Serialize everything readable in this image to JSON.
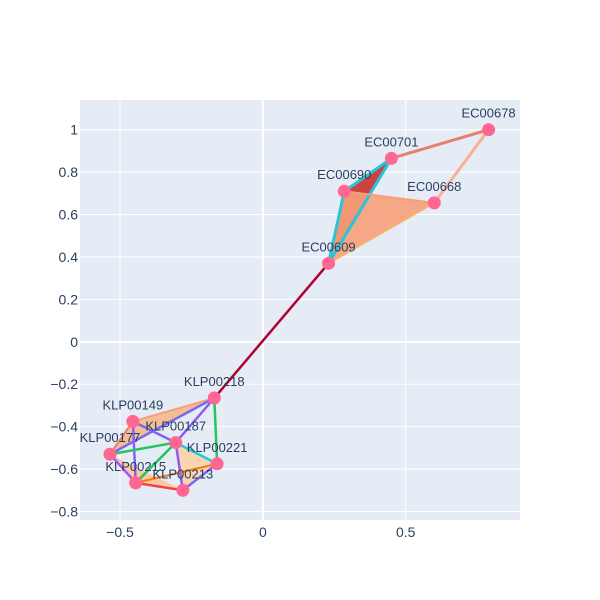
{
  "chart_data": {
    "type": "scatter",
    "title": "",
    "xlabel": "",
    "ylabel": "",
    "xlim": [
      -0.64,
      0.9
    ],
    "ylim": [
      -0.84,
      1.14
    ],
    "x_ticks": [
      -0.5,
      0,
      0.5
    ],
    "x_tick_labels": [
      "−0.5",
      "0",
      "0.5"
    ],
    "y_ticks": [
      -0.8,
      -0.6,
      -0.4,
      -0.2,
      0,
      0.2,
      0.4,
      0.6,
      0.8,
      1
    ],
    "y_tick_labels": [
      "−0.8",
      "−0.6",
      "−0.4",
      "−0.2",
      "0",
      "0.2",
      "0.4",
      "0.6",
      "0.8",
      "1"
    ],
    "grid": true,
    "legend": "none",
    "colors": {
      "plot_bg": "#e5ecf6",
      "node": "#ff6692",
      "bridge": "#b2002f"
    },
    "nodes": [
      {
        "id": "EC00678",
        "x": 0.79,
        "y": 1.0
      },
      {
        "id": "EC00701",
        "x": 0.45,
        "y": 0.865
      },
      {
        "id": "EC00690",
        "x": 0.285,
        "y": 0.71
      },
      {
        "id": "EC00668",
        "x": 0.6,
        "y": 0.655
      },
      {
        "id": "EC00609",
        "x": 0.23,
        "y": 0.37
      },
      {
        "id": "KLP00218",
        "x": -0.17,
        "y": -0.265
      },
      {
        "id": "KLP00149",
        "x": -0.455,
        "y": -0.375
      },
      {
        "id": "KLP00187",
        "x": -0.305,
        "y": -0.475
      },
      {
        "id": "KLP00177",
        "x": -0.535,
        "y": -0.53
      },
      {
        "id": "KLP00221",
        "x": -0.16,
        "y": -0.575
      },
      {
        "id": "KLP00215",
        "x": -0.445,
        "y": -0.665
      },
      {
        "id": "KLP00213",
        "x": -0.28,
        "y": -0.7
      }
    ],
    "triangles": [
      {
        "nodes": [
          "EC00701",
          "EC00690",
          "EC00609"
        ],
        "color": "#c9302c"
      },
      {
        "nodes": [
          "EC00690",
          "EC00668",
          "EC00609"
        ],
        "color": "#f6a07a"
      },
      {
        "nodes": [
          "KLP00218",
          "KLP00149",
          "KLP00177"
        ],
        "color": "#f4b98a"
      },
      {
        "nodes": [
          "KLP00177",
          "KLP00215",
          "KLP00213"
        ],
        "color": "#f9c79a"
      },
      {
        "nodes": [
          "KLP00187",
          "KLP00213",
          "KLP00221"
        ],
        "color": "#fbd3a8"
      }
    ],
    "edges": [
      {
        "a": "EC00609",
        "b": "KLP00218",
        "color": "#b2002f",
        "width": 2.5
      },
      {
        "a": "EC00701",
        "b": "EC00678",
        "color": "#e5806a",
        "width": 3
      },
      {
        "a": "EC00678",
        "b": "EC00668",
        "color": "#f8b195",
        "width": 3
      },
      {
        "a": "EC00701",
        "b": "EC00690",
        "color": "#26c6da",
        "width": 3
      },
      {
        "a": "EC00701",
        "b": "EC00609",
        "color": "#26c6da",
        "width": 3
      },
      {
        "a": "EC00690",
        "b": "EC00609",
        "color": "#26c6da",
        "width": 3
      },
      {
        "a": "EC00690",
        "b": "EC00668",
        "color": "#f6a07a",
        "width": 2
      },
      {
        "a": "EC00609",
        "b": "EC00668",
        "color": "#f8b36b",
        "width": 2
      },
      {
        "a": "KLP00218",
        "b": "KLP00149",
        "color": "#f6a07a",
        "width": 2
      },
      {
        "a": "KLP00218",
        "b": "KLP00177",
        "color": "#7b68ee",
        "width": 2.5
      },
      {
        "a": "KLP00218",
        "b": "KLP00187",
        "color": "#8b5cf6",
        "width": 2.5
      },
      {
        "a": "KLP00218",
        "b": "KLP00221",
        "color": "#22c55e",
        "width": 2.5
      },
      {
        "a": "KLP00149",
        "b": "KLP00177",
        "color": "#e5806a",
        "width": 2
      },
      {
        "a": "KLP00149",
        "b": "KLP00187",
        "color": "#7b68ee",
        "width": 2.5
      },
      {
        "a": "KLP00149",
        "b": "KLP00215",
        "color": "#8b5cf6",
        "width": 2.5
      },
      {
        "a": "KLP00177",
        "b": "KLP00187",
        "color": "#22c55e",
        "width": 2.5
      },
      {
        "a": "KLP00177",
        "b": "KLP00215",
        "color": "#a855f7",
        "width": 2.5
      },
      {
        "a": "KLP00187",
        "b": "KLP00221",
        "color": "#26c6da",
        "width": 2.5
      },
      {
        "a": "KLP00187",
        "b": "KLP00215",
        "color": "#22c55e",
        "width": 2.5
      },
      {
        "a": "KLP00187",
        "b": "KLP00213",
        "color": "#8b5cf6",
        "width": 2.5
      },
      {
        "a": "KLP00215",
        "b": "KLP00213",
        "color": "#ef4444",
        "width": 2.5
      },
      {
        "a": "KLP00221",
        "b": "KLP00213",
        "color": "#7b68ee",
        "width": 2.5
      },
      {
        "a": "KLP00221",
        "b": "KLP00215",
        "color": "#f97316",
        "width": 2
      }
    ]
  }
}
